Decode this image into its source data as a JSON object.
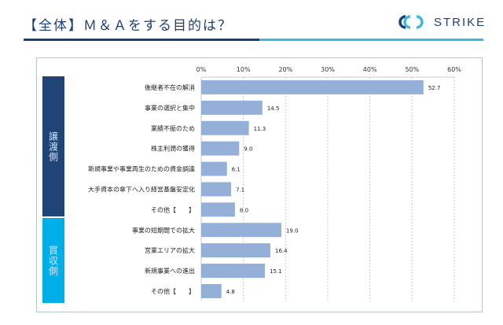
{
  "header": {
    "title": "【全体】Ｍ＆Ａをする目的は？",
    "logo_text": "STRIKE"
  },
  "groups": [
    {
      "label": "譲渡側",
      "color": "#1f4577"
    },
    {
      "label": "買収側",
      "color": "#00aee8"
    }
  ],
  "chart_data": {
    "type": "bar",
    "orientation": "horizontal",
    "categories": [
      "後継者不在の解消",
      "事業の選択と集中",
      "業績不振のため",
      "株主利潤の獲得",
      "新規事業や事業再生のための資金調達",
      "大手資本の傘下へ入り経営基盤安定化",
      "その他【　　】",
      "事業の短期間での拡大",
      "営業エリアの拡大",
      "新規事業への進出",
      "その他【　　】"
    ],
    "category_groups": [
      "譲渡側",
      "譲渡側",
      "譲渡側",
      "譲渡側",
      "譲渡側",
      "譲渡側",
      "譲渡側",
      "買収側",
      "買収側",
      "買収側",
      "買収側"
    ],
    "values": [
      52.7,
      14.5,
      11.3,
      9.0,
      6.1,
      7.1,
      8.0,
      19.0,
      16.4,
      15.1,
      4.8
    ],
    "value_labels": [
      "52.7",
      "14.5",
      "11.3",
      "9.0",
      "6.1",
      "7.1",
      "8.0",
      "19.0",
      "16.4",
      "15.1",
      "4.8"
    ],
    "xlim": [
      0,
      60
    ],
    "xticks": [
      "0%",
      "10%",
      "20%",
      "30%",
      "40%",
      "50%",
      "60%"
    ],
    "grid": true,
    "bar_color": "#95b0d8"
  }
}
